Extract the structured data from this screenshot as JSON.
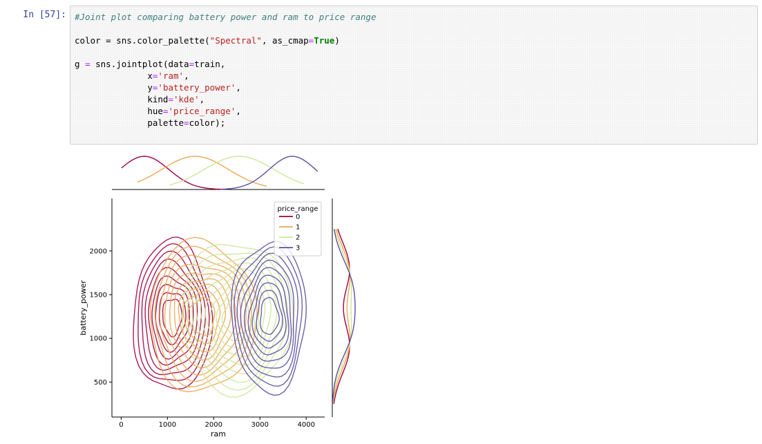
{
  "cell": {
    "prompt": "In [57]:",
    "comment": "#Joint plot comparing battery power and ram to price range",
    "code_lines": [
      "color = sns.color_palette(\"Spectral\", as_cmap=True)",
      "g = sns.jointplot(data=train,",
      "x='ram',",
      "y='battery_power',",
      "kind='kde',",
      "hue='price_range',",
      "palette=color);"
    ]
  },
  "chart_data": {
    "type": "kde",
    "xlabel": "ram",
    "ylabel": "battery_power",
    "xlim": [
      -200,
      4400
    ],
    "ylim": [
      100,
      2600
    ],
    "xticks": [
      0,
      1000,
      2000,
      3000,
      4000
    ],
    "yticks": [
      500,
      1000,
      1500,
      2000
    ],
    "legend": {
      "title": "price_range",
      "placement": "top-right",
      "entries": [
        "0",
        "1",
        "2",
        "3"
      ]
    },
    "colors": {
      "0": "#9e0142",
      "1": "#f0a752",
      "2": "#cde79b",
      "3": "#5e4fa2"
    },
    "series": [
      {
        "name": "0",
        "ram_center": 500,
        "ram_range": [
          256,
          1950
        ],
        "battery_range": [
          500,
          2000
        ]
      },
      {
        "name": "1",
        "ram_center": 1600,
        "ram_range": [
          600,
          2900
        ],
        "battery_range": [
          500,
          2000
        ]
      },
      {
        "name": "2",
        "ram_center": 2550,
        "ram_range": [
          1300,
          3700
        ],
        "battery_range": [
          500,
          2000
        ]
      },
      {
        "name": "3",
        "ram_center": 3700,
        "ram_range": [
          2400,
          4000
        ],
        "battery_range": [
          500,
          2000
        ]
      }
    ]
  }
}
